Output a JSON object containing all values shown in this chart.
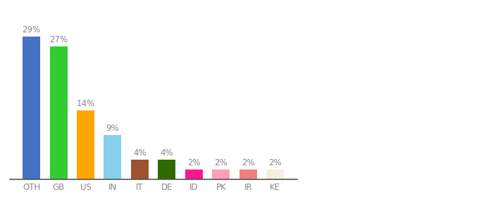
{
  "categories": [
    "OTH",
    "GB",
    "US",
    "IN",
    "IT",
    "DE",
    "ID",
    "PK",
    "IR",
    "KE"
  ],
  "values": [
    29,
    27,
    14,
    9,
    4,
    4,
    2,
    2,
    2,
    2
  ],
  "bar_colors": [
    "#4472c4",
    "#33cc33",
    "#ffa500",
    "#87ceeb",
    "#a0522d",
    "#2d6a00",
    "#ff1493",
    "#ff9eb5",
    "#f08080",
    "#f5f0dc"
  ],
  "ylim": [
    0,
    33
  ],
  "background_color": "#ffffff",
  "label_fontsize": 8.5,
  "tick_fontsize": 8.5,
  "label_color": "#888888"
}
